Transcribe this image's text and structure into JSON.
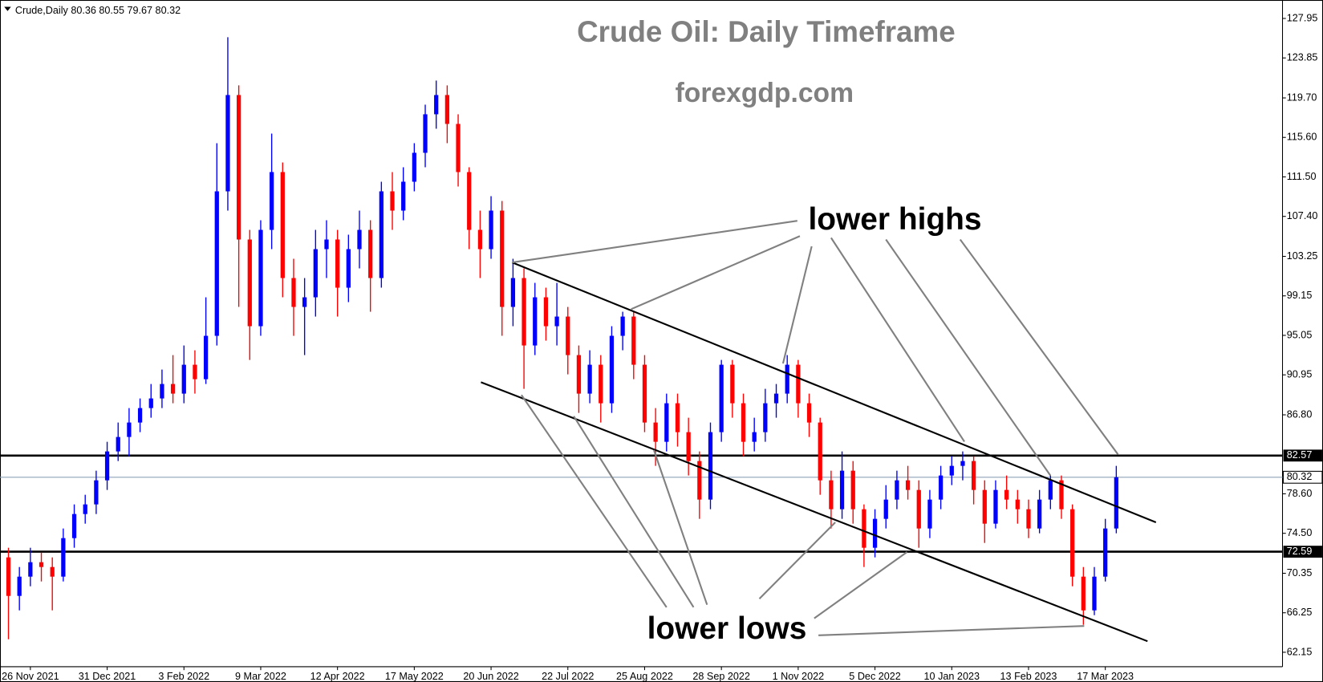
{
  "chart_data": {
    "type": "candlestick",
    "header": "Crude,Daily  80.36 80.55 79.67 80.32",
    "title": "Crude Oil: Daily Timeframe",
    "subtitle": "forexgdp.com",
    "annotations": [
      "lower highs",
      "lower lows"
    ],
    "up_color": "#0000ff",
    "down_color": "#ff0000",
    "categories": [
      null,
      null,
      "26 Nov 2021",
      null,
      null,
      null,
      null,
      null,
      null,
      "31 Dec 2021",
      null,
      null,
      null,
      null,
      null,
      null,
      "3 Feb 2022",
      null,
      null,
      null,
      null,
      null,
      null,
      "9 Mar 2022",
      null,
      null,
      null,
      null,
      null,
      null,
      "12 Apr 2022",
      null,
      null,
      null,
      null,
      null,
      null,
      "17 May 2022",
      null,
      null,
      null,
      null,
      null,
      null,
      "20 Jun 2022",
      null,
      null,
      null,
      null,
      null,
      null,
      "22 Jul 2022",
      null,
      null,
      null,
      null,
      null,
      null,
      "25 Aug 2022",
      null,
      null,
      null,
      null,
      null,
      null,
      "28 Sep 2022",
      null,
      null,
      null,
      null,
      null,
      null,
      "1 Nov 2022",
      null,
      null,
      null,
      null,
      null,
      null,
      "5 Dec 2022",
      null,
      null,
      null,
      null,
      null,
      null,
      "10 Jan 2023",
      null,
      null,
      null,
      null,
      null,
      null,
      "13 Feb 2023",
      null,
      null,
      null,
      null,
      null,
      null,
      "17 Mar 2023",
      null
    ],
    "open": [
      72,
      68,
      70,
      71.5,
      71,
      70,
      74,
      76.5,
      77.5,
      80,
      83,
      84.5,
      86,
      87.5,
      88.5,
      90,
      89,
      92,
      90.5,
      95,
      110,
      120,
      105,
      96,
      106,
      112,
      101,
      98,
      99,
      104,
      105,
      100,
      104,
      106,
      101,
      110,
      108,
      111,
      114,
      118,
      120,
      117,
      112,
      106,
      104,
      108,
      98,
      101,
      94,
      99,
      96,
      97,
      93,
      89,
      92,
      88,
      95,
      97,
      92,
      86,
      84,
      88,
      85,
      82,
      78,
      85,
      92,
      88,
      84,
      85,
      88,
      89,
      92,
      88,
      86,
      80,
      77,
      81,
      77,
      73,
      76,
      78,
      80,
      79,
      75,
      78,
      80.5,
      81.5,
      82,
      79,
      75.5,
      79,
      78,
      77,
      75,
      78,
      80,
      77,
      70,
      66.5,
      70,
      75
    ],
    "high": [
      73,
      71,
      73,
      72.5,
      72,
      75,
      77.5,
      78.5,
      81,
      84,
      86,
      87.5,
      88.5,
      90,
      91.5,
      93,
      94,
      93.5,
      99,
      115,
      126,
      121,
      106,
      107,
      116,
      113,
      103,
      101,
      106,
      107,
      106,
      105.5,
      108,
      107,
      111,
      112,
      112.5,
      115,
      119,
      121.5,
      121,
      118,
      112.5,
      108,
      109.5,
      109,
      103,
      102,
      100.5,
      100,
      100.5,
      98,
      94,
      93.5,
      93,
      96,
      97.5,
      97.5,
      93,
      87.5,
      89,
      89,
      86.5,
      83,
      86,
      92.5,
      92.5,
      89,
      86.5,
      89.5,
      90,
      93,
      92.5,
      89,
      86.5,
      81,
      83,
      82,
      77.5,
      77,
      79.5,
      81,
      81.5,
      80,
      79,
      81.5,
      82.5,
      83,
      82.5,
      80,
      80,
      80.5,
      79,
      78,
      79,
      80.5,
      80.5,
      77.5,
      71,
      71,
      76,
      81.5
    ],
    "low": [
      63.5,
      66.5,
      69,
      69.5,
      66.5,
      69.5,
      73,
      75.5,
      76.5,
      79,
      82,
      82.5,
      85,
      86.5,
      87.5,
      88,
      88,
      89,
      90,
      94,
      108,
      98,
      92.5,
      95,
      104,
      99,
      95,
      93,
      97,
      101,
      97,
      98.5,
      102,
      97.5,
      100,
      106,
      107,
      110,
      112.5,
      116.5,
      115,
      110.5,
      104,
      101,
      103,
      95,
      96,
      89.5,
      93,
      94.5,
      94,
      91,
      87,
      88,
      86,
      87,
      93.5,
      90.5,
      85,
      81.5,
      83,
      83.5,
      80.5,
      76,
      77,
      84,
      86.5,
      82.5,
      83,
      84,
      86.5,
      88,
      86.5,
      84.5,
      78.5,
      75,
      76,
      75.5,
      71,
      72,
      75,
      77,
      78,
      73,
      74,
      77,
      79.5,
      80,
      77.5,
      73.5,
      75,
      77,
      75.5,
      74,
      74.5,
      77,
      76,
      69,
      65,
      66,
      69.5,
      74.5
    ],
    "close": [
      68,
      70,
      71.5,
      71,
      70,
      74,
      76.5,
      77.5,
      80,
      83,
      84.5,
      86,
      87.5,
      88.5,
      90,
      89,
      92,
      90.5,
      95,
      110,
      120,
      105,
      96,
      106,
      112,
      101,
      98,
      99,
      104,
      105,
      100,
      104,
      106,
      101,
      110,
      108,
      111,
      114,
      118,
      120,
      117,
      112,
      106,
      104,
      108,
      98,
      101,
      94,
      99,
      96,
      97,
      93,
      89,
      92,
      88,
      95,
      97,
      92,
      86,
      84,
      88,
      85,
      82,
      78,
      85,
      92,
      88,
      84,
      85,
      88,
      89,
      92,
      88,
      86,
      80,
      77,
      81,
      77,
      73,
      76,
      78,
      80,
      79,
      75,
      78,
      80.5,
      81.5,
      82,
      79,
      75.5,
      79,
      78,
      77,
      75,
      78,
      80,
      77,
      70,
      66.5,
      70,
      75,
      80.32
    ],
    "ylim": [
      60.65,
      129.6
    ],
    "yticks": [
      {
        "value": 127.95,
        "label": "127.95"
      },
      {
        "value": 123.85,
        "label": "123.85"
      },
      {
        "value": 119.7,
        "label": "119.70"
      },
      {
        "value": 115.6,
        "label": "115.60"
      },
      {
        "value": 111.5,
        "label": "111.50"
      },
      {
        "value": 107.4,
        "label": "107.40"
      },
      {
        "value": 103.25,
        "label": "103.25"
      },
      {
        "value": 99.15,
        "label": "99.15"
      },
      {
        "value": 95.05,
        "label": "95.05"
      },
      {
        "value": 90.95,
        "label": "90.95"
      },
      {
        "value": 86.8,
        "label": "86.80"
      },
      {
        "value": 78.6,
        "label": "78.60"
      },
      {
        "value": 74.5,
        "label": "74.50"
      },
      {
        "value": 70.35,
        "label": "70.35"
      },
      {
        "value": 66.25,
        "label": "66.25"
      },
      {
        "value": 62.15,
        "label": "62.15"
      }
    ],
    "levels": [
      82.57,
      72.59
    ],
    "last_price": 80.32,
    "grid": false
  }
}
